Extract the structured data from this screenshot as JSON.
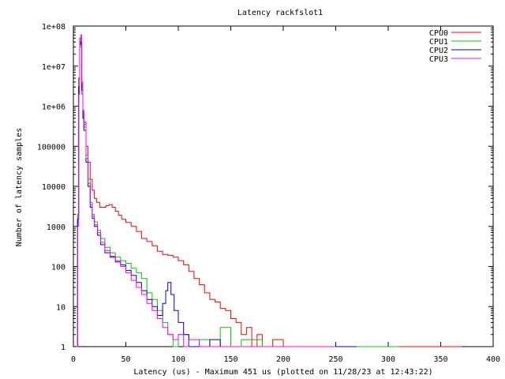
{
  "chart_data": {
    "type": "line",
    "title": "Latency rackfslot1",
    "xlabel": "Latency (us) - Maximum 451 us (plotted on 11/28/23 at 12:43:22)",
    "ylabel": "Number of latency samples",
    "xlim": [
      0,
      400
    ],
    "ylim": [
      1,
      100000000
    ],
    "y_scale": "log",
    "grid": false,
    "legend_position": "top-right",
    "x_ticks": [
      "0",
      "50",
      "100",
      "150",
      "200",
      "250",
      "300",
      "350",
      "400"
    ],
    "y_ticks": [
      "1",
      "10",
      "100",
      "1000",
      "10000",
      "100000",
      "1e+06",
      "1e+07",
      "1e+08"
    ],
    "series": [
      {
        "name": "CPU0",
        "color": "#ff0000",
        "points": [
          [
            3,
            1
          ],
          [
            4,
            2000
          ],
          [
            5,
            5000000
          ],
          [
            6,
            40000000
          ],
          [
            7,
            50000000
          ],
          [
            8,
            3000000
          ],
          [
            9,
            700000
          ],
          [
            10,
            400000
          ],
          [
            12,
            100000
          ],
          [
            14,
            40000
          ],
          [
            16,
            15000
          ],
          [
            18,
            8000
          ],
          [
            20,
            5000
          ],
          [
            22,
            4000
          ],
          [
            25,
            3000
          ],
          [
            28,
            3000
          ],
          [
            31,
            3300
          ],
          [
            34,
            3500
          ],
          [
            37,
            3000
          ],
          [
            40,
            2400
          ],
          [
            43,
            1900
          ],
          [
            46,
            1500
          ],
          [
            50,
            1250
          ],
          [
            55,
            1000
          ],
          [
            60,
            750
          ],
          [
            65,
            500
          ],
          [
            70,
            420
          ],
          [
            75,
            330
          ],
          [
            80,
            240
          ],
          [
            85,
            200
          ],
          [
            90,
            190
          ],
          [
            95,
            170
          ],
          [
            100,
            140
          ],
          [
            105,
            110
          ],
          [
            110,
            75
          ],
          [
            115,
            50
          ],
          [
            120,
            35
          ],
          [
            125,
            22
          ],
          [
            130,
            15
          ],
          [
            135,
            13
          ],
          [
            140,
            9
          ],
          [
            145,
            8
          ],
          [
            150,
            5
          ],
          [
            155,
            4
          ],
          [
            160,
            2
          ],
          [
            165,
            3
          ],
          [
            170,
            1
          ],
          [
            175,
            2
          ],
          [
            180,
            1
          ],
          [
            190,
            1.5
          ],
          [
            200,
            1
          ],
          [
            215,
            1
          ],
          [
            230,
            1
          ],
          [
            260,
            1
          ],
          [
            300,
            1
          ],
          [
            370,
            1
          ]
        ]
      },
      {
        "name": "CPU1",
        "color": "#00cc00",
        "points": [
          [
            3,
            1
          ],
          [
            4,
            2000
          ],
          [
            5,
            4000000
          ],
          [
            6,
            30000000
          ],
          [
            7,
            45000000
          ],
          [
            8,
            2000000
          ],
          [
            9,
            600000
          ],
          [
            10,
            300000
          ],
          [
            12,
            60000
          ],
          [
            14,
            15000
          ],
          [
            16,
            4000
          ],
          [
            18,
            2000
          ],
          [
            20,
            1300
          ],
          [
            23,
            800
          ],
          [
            26,
            500
          ],
          [
            30,
            300
          ],
          [
            35,
            220
          ],
          [
            40,
            170
          ],
          [
            45,
            140
          ],
          [
            50,
            120
          ],
          [
            55,
            90
          ],
          [
            60,
            70
          ],
          [
            65,
            50
          ],
          [
            70,
            22
          ],
          [
            75,
            15
          ],
          [
            80,
            8
          ],
          [
            85,
            4
          ],
          [
            90,
            2
          ],
          [
            95,
            1
          ],
          [
            100,
            2
          ],
          [
            110,
            1
          ],
          [
            120,
            1.5
          ],
          [
            130,
            1
          ],
          [
            140,
            3
          ],
          [
            150,
            1
          ],
          [
            160,
            1.5
          ],
          [
            180,
            1
          ],
          [
            210,
            1
          ],
          [
            230,
            1
          ],
          [
            250,
            1
          ],
          [
            310,
            1
          ]
        ]
      },
      {
        "name": "CPU2",
        "color": "#0000cc",
        "points": [
          [
            3,
            1
          ],
          [
            4,
            1500
          ],
          [
            5,
            3000000
          ],
          [
            6,
            35000000
          ],
          [
            7,
            40000000
          ],
          [
            8,
            2500000
          ],
          [
            9,
            500000
          ],
          [
            10,
            250000
          ],
          [
            12,
            40000
          ],
          [
            14,
            10000
          ],
          [
            16,
            3000
          ],
          [
            18,
            1600
          ],
          [
            20,
            1000
          ],
          [
            23,
            600
          ],
          [
            26,
            350
          ],
          [
            30,
            220
          ],
          [
            35,
            170
          ],
          [
            40,
            130
          ],
          [
            45,
            110
          ],
          [
            50,
            80
          ],
          [
            55,
            60
          ],
          [
            60,
            40
          ],
          [
            65,
            25
          ],
          [
            70,
            15
          ],
          [
            75,
            10
          ],
          [
            80,
            6
          ],
          [
            85,
            12
          ],
          [
            88,
            25
          ],
          [
            90,
            40
          ],
          [
            93,
            20
          ],
          [
            96,
            8
          ],
          [
            100,
            4
          ],
          [
            105,
            2
          ],
          [
            110,
            1
          ],
          [
            120,
            1
          ],
          [
            130,
            1.5
          ],
          [
            140,
            1
          ],
          [
            160,
            1
          ],
          [
            200,
            1
          ],
          [
            230,
            1
          ],
          [
            270,
            1
          ]
        ]
      },
      {
        "name": "CPU3",
        "color": "#ff00ff",
        "points": [
          [
            3,
            1
          ],
          [
            4,
            1000
          ],
          [
            5,
            2000000
          ],
          [
            6,
            50000000
          ],
          [
            7,
            60000000
          ],
          [
            8,
            4000000
          ],
          [
            9,
            800000
          ],
          [
            10,
            350000
          ],
          [
            12,
            50000
          ],
          [
            14,
            12000
          ],
          [
            16,
            3500
          ],
          [
            18,
            1800
          ],
          [
            20,
            1100
          ],
          [
            23,
            700
          ],
          [
            26,
            400
          ],
          [
            30,
            250
          ],
          [
            35,
            180
          ],
          [
            40,
            140
          ],
          [
            45,
            100
          ],
          [
            50,
            70
          ],
          [
            55,
            45
          ],
          [
            60,
            30
          ],
          [
            65,
            20
          ],
          [
            70,
            12
          ],
          [
            75,
            8
          ],
          [
            80,
            5
          ],
          [
            85,
            3
          ],
          [
            90,
            2
          ],
          [
            95,
            1.5
          ],
          [
            100,
            2
          ],
          [
            105,
            1
          ],
          [
            110,
            1.5
          ],
          [
            120,
            1
          ],
          [
            130,
            1
          ],
          [
            150,
            1
          ],
          [
            180,
            1
          ],
          [
            220,
            1
          ],
          [
            250,
            1
          ]
        ]
      }
    ]
  }
}
